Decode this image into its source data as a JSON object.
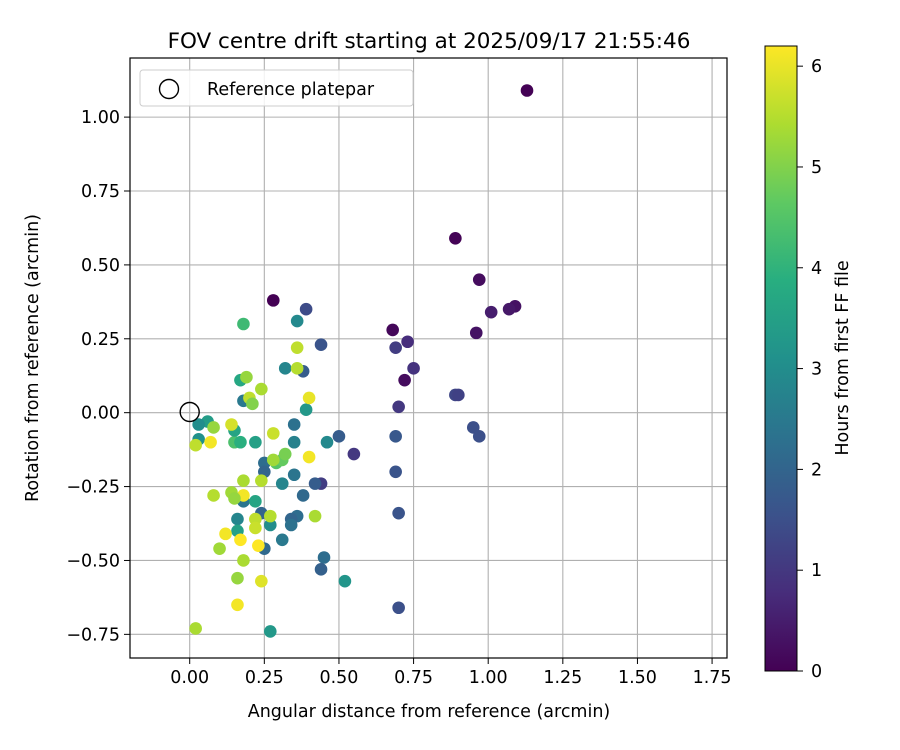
{
  "chart_data": {
    "type": "scatter",
    "title": "FOV centre drift starting at 2025/09/17 21:55:46",
    "xlabel": "Angular distance from reference (arcmin)",
    "ylabel": "Rotation from reference (arcmin)",
    "xlim": [
      -0.2,
      1.8
    ],
    "ylim": [
      -0.83,
      1.2
    ],
    "xticks": [
      0.0,
      0.25,
      0.5,
      0.75,
      1.0,
      1.25,
      1.5,
      1.75
    ],
    "xtick_labels": [
      "0.00",
      "0.25",
      "0.50",
      "0.75",
      "1.00",
      "1.25",
      "1.50",
      "1.75"
    ],
    "yticks": [
      -0.75,
      -0.5,
      -0.25,
      0.0,
      0.25,
      0.5,
      0.75,
      1.0
    ],
    "ytick_labels": [
      "−0.75",
      "−0.50",
      "−0.25",
      "0.00",
      "0.25",
      "0.50",
      "0.75",
      "1.00"
    ],
    "grid": true,
    "legend": {
      "label": "Reference platepar",
      "placement": "top-left"
    },
    "reference_point": {
      "x": 0.0,
      "y": 0.0
    },
    "colorbar": {
      "label": "Hours from first FF file",
      "colormap": "viridis",
      "range": [
        0,
        6.2
      ],
      "ticks": [
        0,
        1,
        2,
        3,
        4,
        5,
        6
      ],
      "tick_labels": [
        "0",
        "1",
        "2",
        "3",
        "4",
        "5",
        "6"
      ]
    },
    "points": [
      {
        "x": 1.13,
        "y": 1.09,
        "h": 0.02
      },
      {
        "x": 0.89,
        "y": 0.59,
        "h": 0.03
      },
      {
        "x": 0.97,
        "y": 0.45,
        "h": 0.2
      },
      {
        "x": 1.09,
        "y": 0.36,
        "h": 0.3
      },
      {
        "x": 1.07,
        "y": 0.35,
        "h": 0.4
      },
      {
        "x": 1.01,
        "y": 0.34,
        "h": 0.5
      },
      {
        "x": 0.96,
        "y": 0.27,
        "h": 0.3
      },
      {
        "x": 0.68,
        "y": 0.28,
        "h": 0.1
      },
      {
        "x": 0.73,
        "y": 0.24,
        "h": 0.8
      },
      {
        "x": 0.69,
        "y": 0.22,
        "h": 1.1
      },
      {
        "x": 0.75,
        "y": 0.15,
        "h": 0.9
      },
      {
        "x": 0.72,
        "y": 0.11,
        "h": 0.2
      },
      {
        "x": 0.89,
        "y": 0.06,
        "h": 1.3
      },
      {
        "x": 0.9,
        "y": 0.06,
        "h": 1.2
      },
      {
        "x": 0.7,
        "y": 0.02,
        "h": 1.0
      },
      {
        "x": 0.95,
        "y": -0.05,
        "h": 1.5
      },
      {
        "x": 0.97,
        "y": -0.08,
        "h": 1.5
      },
      {
        "x": 0.69,
        "y": -0.08,
        "h": 1.7
      },
      {
        "x": 0.69,
        "y": -0.2,
        "h": 1.6
      },
      {
        "x": 0.7,
        "y": -0.34,
        "h": 1.6
      },
      {
        "x": 0.7,
        "y": -0.66,
        "h": 1.5
      },
      {
        "x": 0.55,
        "y": -0.14,
        "h": 1.0
      },
      {
        "x": 0.5,
        "y": -0.08,
        "h": 1.8
      },
      {
        "x": 0.46,
        "y": -0.1,
        "h": 2.9
      },
      {
        "x": 0.44,
        "y": -0.24,
        "h": 1.1
      },
      {
        "x": 0.42,
        "y": -0.24,
        "h": 1.8
      },
      {
        "x": 0.45,
        "y": -0.49,
        "h": 2.2
      },
      {
        "x": 0.44,
        "y": -0.53,
        "h": 1.9
      },
      {
        "x": 0.52,
        "y": -0.57,
        "h": 3.2
      },
      {
        "x": 0.39,
        "y": 0.35,
        "h": 1.4
      },
      {
        "x": 0.44,
        "y": 0.23,
        "h": 1.6
      },
      {
        "x": 0.36,
        "y": 0.31,
        "h": 2.9
      },
      {
        "x": 0.38,
        "y": 0.14,
        "h": 1.8
      },
      {
        "x": 0.32,
        "y": 0.15,
        "h": 2.8
      },
      {
        "x": 0.39,
        "y": 0.01,
        "h": 3.3
      },
      {
        "x": 0.35,
        "y": -0.04,
        "h": 2.3
      },
      {
        "x": 0.35,
        "y": -0.1,
        "h": 2.7
      },
      {
        "x": 0.35,
        "y": -0.21,
        "h": 2.4
      },
      {
        "x": 0.38,
        "y": -0.28,
        "h": 2.1
      },
      {
        "x": 0.36,
        "y": -0.35,
        "h": 2.2
      },
      {
        "x": 0.34,
        "y": -0.36,
        "h": 2.0
      },
      {
        "x": 0.34,
        "y": -0.38,
        "h": 2.3
      },
      {
        "x": 0.31,
        "y": -0.43,
        "h": 2.5
      },
      {
        "x": 0.31,
        "y": -0.24,
        "h": 2.8
      },
      {
        "x": 0.27,
        "y": -0.38,
        "h": 3.0
      },
      {
        "x": 0.25,
        "y": -0.17,
        "h": 2.2
      },
      {
        "x": 0.25,
        "y": -0.2,
        "h": 2.0
      },
      {
        "x": 0.24,
        "y": -0.34,
        "h": 2.0
      },
      {
        "x": 0.25,
        "y": -0.46,
        "h": 2.1
      },
      {
        "x": 0.27,
        "y": -0.74,
        "h": 3.3
      },
      {
        "x": 0.18,
        "y": 0.04,
        "h": 2.5
      },
      {
        "x": 0.17,
        "y": 0.11,
        "h": 3.7
      },
      {
        "x": 0.18,
        "y": 0.3,
        "h": 4.2
      },
      {
        "x": 0.22,
        "y": -0.1,
        "h": 3.5
      },
      {
        "x": 0.18,
        "y": -0.3,
        "h": 2.4
      },
      {
        "x": 0.16,
        "y": -0.36,
        "h": 2.8
      },
      {
        "x": 0.16,
        "y": -0.4,
        "h": 3.5
      },
      {
        "x": 0.15,
        "y": -0.1,
        "h": 4.4
      },
      {
        "x": 0.17,
        "y": -0.1,
        "h": 3.9
      },
      {
        "x": 0.15,
        "y": -0.06,
        "h": 3.6
      },
      {
        "x": 0.06,
        "y": -0.03,
        "h": 3.4
      },
      {
        "x": 0.03,
        "y": -0.04,
        "h": 3.0
      },
      {
        "x": 0.03,
        "y": -0.09,
        "h": 3.1
      },
      {
        "x": 0.22,
        "y": -0.3,
        "h": 3.6
      },
      {
        "x": 0.28,
        "y": 0.38,
        "h": 0.0
      },
      {
        "x": 0.29,
        "y": -0.17,
        "h": 4.5
      },
      {
        "x": 0.31,
        "y": -0.16,
        "h": 4.7
      },
      {
        "x": 0.32,
        "y": -0.14,
        "h": 4.9
      },
      {
        "x": 0.36,
        "y": 0.22,
        "h": 5.6
      },
      {
        "x": 0.36,
        "y": 0.15,
        "h": 5.5
      },
      {
        "x": 0.4,
        "y": 0.05,
        "h": 6.0
      },
      {
        "x": 0.4,
        "y": -0.15,
        "h": 6.1
      },
      {
        "x": 0.42,
        "y": -0.35,
        "h": 5.4
      },
      {
        "x": 0.28,
        "y": -0.07,
        "h": 5.7
      },
      {
        "x": 0.28,
        "y": -0.16,
        "h": 5.3
      },
      {
        "x": 0.27,
        "y": -0.35,
        "h": 5.5
      },
      {
        "x": 0.24,
        "y": 0.08,
        "h": 5.4
      },
      {
        "x": 0.19,
        "y": 0.12,
        "h": 5.2
      },
      {
        "x": 0.2,
        "y": 0.05,
        "h": 5.6
      },
      {
        "x": 0.21,
        "y": 0.03,
        "h": 5.0
      },
      {
        "x": 0.24,
        "y": -0.23,
        "h": 5.5
      },
      {
        "x": 0.22,
        "y": -0.36,
        "h": 5.6
      },
      {
        "x": 0.22,
        "y": -0.39,
        "h": 5.7
      },
      {
        "x": 0.23,
        "y": -0.45,
        "h": 6.2
      },
      {
        "x": 0.24,
        "y": -0.57,
        "h": 5.9
      },
      {
        "x": 0.18,
        "y": -0.23,
        "h": 5.4
      },
      {
        "x": 0.18,
        "y": -0.28,
        "h": 6.1
      },
      {
        "x": 0.17,
        "y": -0.43,
        "h": 6.2
      },
      {
        "x": 0.14,
        "y": -0.27,
        "h": 5.3
      },
      {
        "x": 0.15,
        "y": -0.29,
        "h": 5.2
      },
      {
        "x": 0.14,
        "y": -0.04,
        "h": 5.8
      },
      {
        "x": 0.12,
        "y": -0.41,
        "h": 6.1
      },
      {
        "x": 0.08,
        "y": -0.28,
        "h": 5.5
      },
      {
        "x": 0.07,
        "y": -0.1,
        "h": 6.1
      },
      {
        "x": 0.08,
        "y": -0.05,
        "h": 5.2
      },
      {
        "x": 0.02,
        "y": -0.11,
        "h": 5.6
      },
      {
        "x": 0.1,
        "y": -0.46,
        "h": 5.3
      },
      {
        "x": 0.18,
        "y": -0.5,
        "h": 5.4
      },
      {
        "x": 0.16,
        "y": -0.56,
        "h": 5.2
      },
      {
        "x": 0.16,
        "y": -0.65,
        "h": 6.1
      },
      {
        "x": 0.02,
        "y": -0.73,
        "h": 5.4
      }
    ]
  }
}
